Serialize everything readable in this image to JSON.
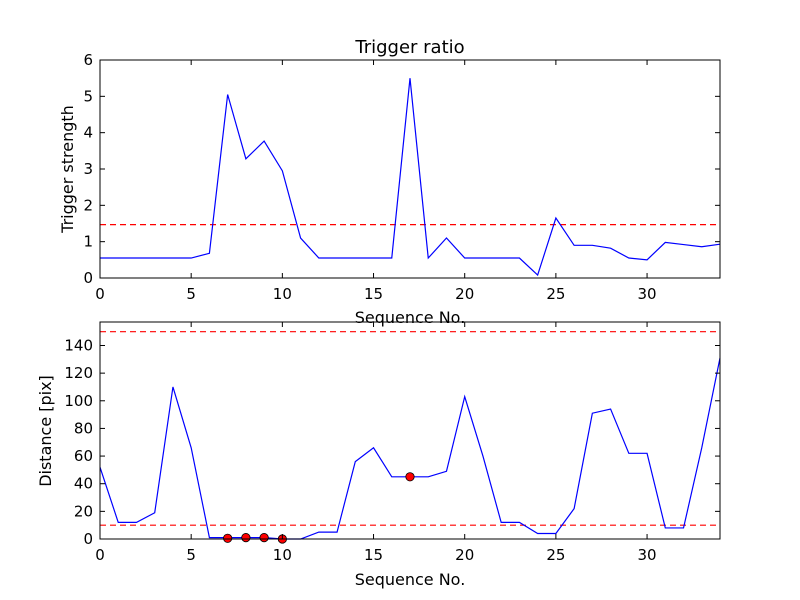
{
  "chart_data": [
    {
      "type": "line",
      "title": "Trigger ratio",
      "xlabel": "Sequence No.",
      "ylabel": "Trigger strength",
      "xlim": [
        0,
        34
      ],
      "ylim": [
        0,
        6
      ],
      "xticks": [
        0,
        5,
        10,
        15,
        20,
        25,
        30
      ],
      "yticks": [
        0,
        1,
        2,
        3,
        4,
        5,
        6
      ],
      "grid": false,
      "series": [
        {
          "color": "#0000ff",
          "x": [
            0,
            1,
            2,
            3,
            4,
            5,
            6,
            7,
            8,
            9,
            10,
            11,
            12,
            13,
            14,
            15,
            16,
            17,
            18,
            19,
            20,
            21,
            22,
            23,
            24,
            25,
            26,
            27,
            28,
            29,
            30,
            31,
            32,
            33,
            34
          ],
          "values": [
            0.55,
            0.55,
            0.55,
            0.55,
            0.55,
            0.55,
            0.68,
            5.05,
            3.28,
            3.77,
            2.95,
            1.1,
            0.55,
            0.55,
            0.55,
            0.55,
            0.55,
            5.5,
            0.55,
            1.1,
            0.55,
            0.55,
            0.55,
            0.55,
            0.08,
            1.65,
            0.9,
            0.9,
            0.82,
            0.55,
            0.5,
            0.98,
            0.92,
            0.86,
            0.93
          ]
        }
      ],
      "hlines": [
        {
          "y": 1.47,
          "color": "#ff0000",
          "style": "dashed"
        }
      ]
    },
    {
      "type": "line",
      "title": "",
      "xlabel": "Sequence No.",
      "ylabel": "Distance [pix]",
      "xlim": [
        0,
        34
      ],
      "ylim": [
        0,
        157
      ],
      "xticks": [
        0,
        5,
        10,
        15,
        20,
        25,
        30
      ],
      "yticks": [
        0,
        20,
        40,
        60,
        80,
        100,
        120,
        140
      ],
      "grid": false,
      "series": [
        {
          "color": "#0000ff",
          "x": [
            0,
            1,
            2,
            3,
            4,
            5,
            6,
            7,
            8,
            9,
            10,
            11,
            12,
            13,
            14,
            15,
            16,
            17,
            18,
            19,
            20,
            21,
            22,
            23,
            24,
            25,
            26,
            27,
            28,
            29,
            30,
            31,
            32,
            33,
            34
          ],
          "values": [
            52,
            12,
            12,
            19,
            110,
            66,
            1,
            1,
            1,
            1,
            0,
            0,
            5,
            5,
            56,
            66,
            45,
            45,
            45,
            49,
            103,
            60,
            12,
            12,
            4,
            4,
            22,
            91,
            94,
            62,
            62,
            8,
            8,
            66,
            131
          ]
        }
      ],
      "markers": {
        "color": "#ff0000",
        "x": [
          7,
          8,
          9,
          10,
          17
        ],
        "y": [
          0.5,
          1,
          1,
          0,
          45
        ]
      },
      "hlines": [
        {
          "y": 150,
          "color": "#ff0000",
          "style": "dashed"
        },
        {
          "y": 10,
          "color": "#ff0000",
          "style": "dashed"
        }
      ]
    }
  ]
}
